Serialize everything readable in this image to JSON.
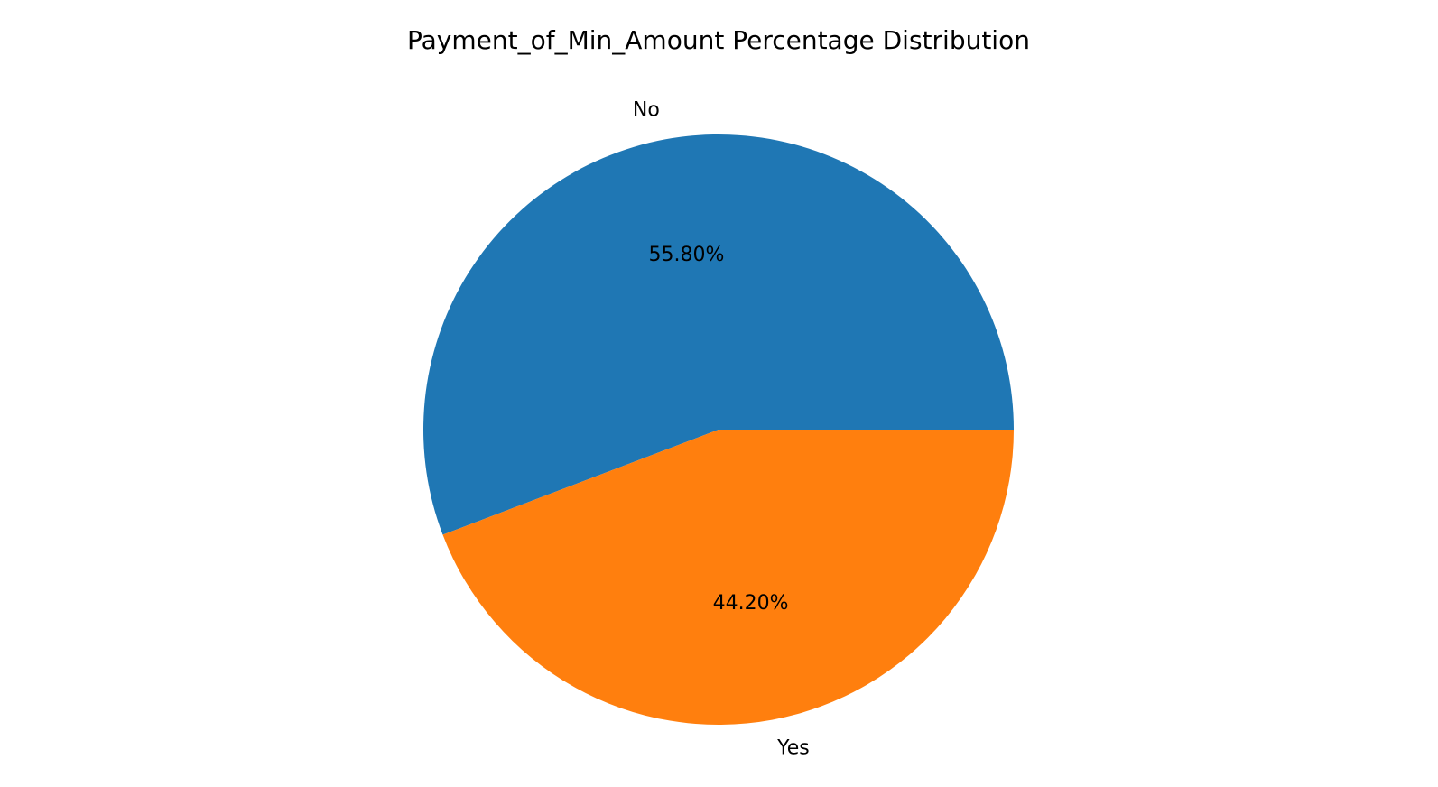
{
  "chart_data": {
    "type": "pie",
    "title": "Payment_of_Min_Amount Percentage Distribution",
    "start_angle_deg": 0,
    "direction": "counterclockwise",
    "slices": [
      {
        "label": "No",
        "value": 55.8,
        "pct_label": "55.80%",
        "color": "#1f77b4"
      },
      {
        "label": "Yes",
        "value": 44.2,
        "pct_label": "44.20%",
        "color": "#ff7f0e"
      }
    ]
  }
}
